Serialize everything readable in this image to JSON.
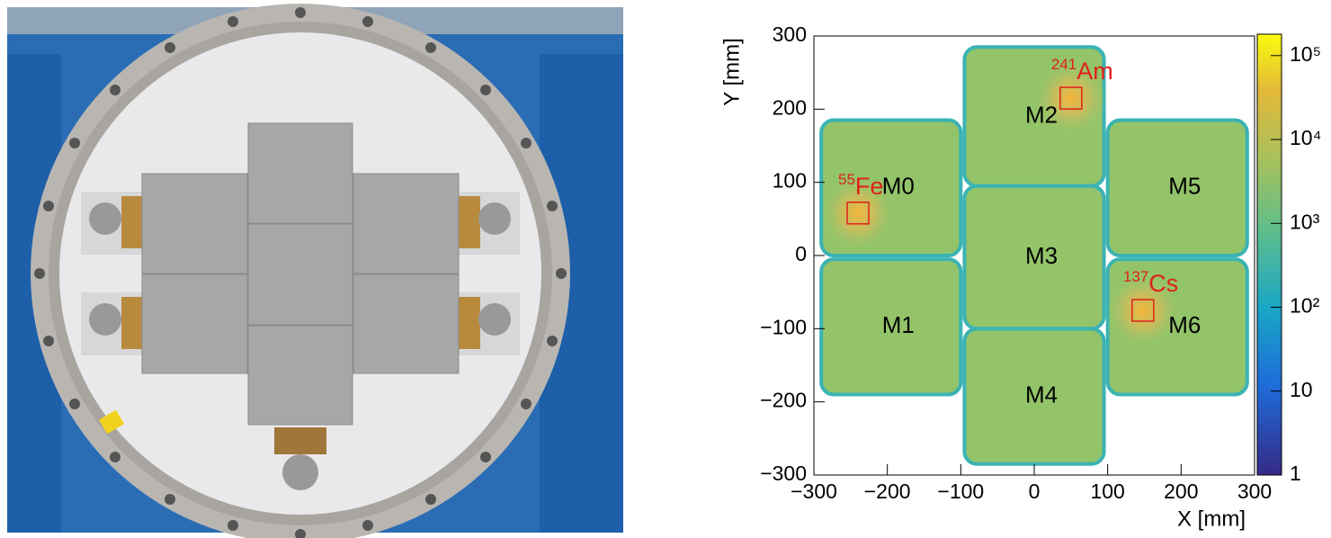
{
  "chart_data": {
    "type": "heatmap",
    "xlabel": "X [mm]",
    "ylabel": "Y [mm]",
    "xlim": [
      -300,
      300
    ],
    "ylim": [
      -300,
      300
    ],
    "xticks": [
      {
        "value": -300,
        "label": "−300"
      },
      {
        "value": -200,
        "label": "−200"
      },
      {
        "value": -100,
        "label": "−100"
      },
      0,
      100,
      200,
      300
    ],
    "yticks": [
      {
        "value": -300,
        "label": "−300"
      },
      {
        "value": -200,
        "label": "−200"
      },
      {
        "value": -100,
        "label": "−100"
      },
      0,
      100,
      200,
      300
    ],
    "zlim": [
      1,
      180000
    ],
    "zscale": "log",
    "zticks": [
      1,
      10,
      {
        "value": 100,
        "label": "10²"
      },
      {
        "value": 1000,
        "label": "10³"
      },
      {
        "value": 10000,
        "label": "10⁴"
      },
      {
        "value": 100000,
        "label": "10⁵"
      }
    ],
    "modules": [
      {
        "name": "M0",
        "x": [
          -290,
          -100
        ],
        "y": [
          0,
          185
        ]
      },
      {
        "name": "M1",
        "x": [
          -290,
          -100
        ],
        "y": [
          -190,
          -5
        ]
      },
      {
        "name": "M2",
        "x": [
          -95,
          95
        ],
        "y": [
          95,
          285
        ]
      },
      {
        "name": "M3",
        "x": [
          -95,
          95
        ],
        "y": [
          -100,
          95
        ]
      },
      {
        "name": "M4",
        "x": [
          -95,
          95
        ],
        "y": [
          -285,
          -100
        ]
      },
      {
        "name": "M5",
        "x": [
          100,
          290
        ],
        "y": [
          0,
          185
        ]
      },
      {
        "name": "M6",
        "x": [
          100,
          290
        ],
        "y": [
          -190,
          -5
        ]
      }
    ],
    "sources": [
      {
        "mass": "55",
        "label": "Fe",
        "x": -240,
        "y": 58
      },
      {
        "mass": "241",
        "label": "Am",
        "x": 50,
        "y": 215
      },
      {
        "mass": "137",
        "label": "Cs",
        "x": 148,
        "y": -75
      }
    ]
  }
}
